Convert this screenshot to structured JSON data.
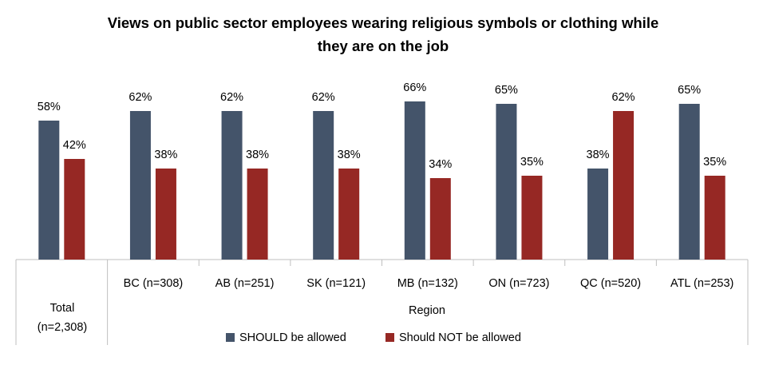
{
  "chart_data": {
    "type": "bar",
    "title_lines": [
      "Views on public sector employees wearing religious symbols or clothing while",
      "they are on the job"
    ],
    "total_label_lines": [
      "Total",
      "(n=2,308)"
    ],
    "group_label": "Region",
    "categories": [
      "Total",
      "BC (n=308)",
      "AB (n=251)",
      "SK (n=121)",
      "MB (n=132)",
      "ON (n=723)",
      "QC (n=520)",
      "ATL (n=253)"
    ],
    "series": [
      {
        "name": "SHOULD be allowed",
        "color": "#44546a",
        "values": [
          58,
          62,
          62,
          62,
          66,
          65,
          38,
          65
        ],
        "labels": [
          "58%",
          "62%",
          "62%",
          "62%",
          "66%",
          "65%",
          "38%",
          "65%"
        ]
      },
      {
        "name": "Should NOT be allowed",
        "color": "#962824",
        "values": [
          42,
          38,
          38,
          38,
          34,
          35,
          62,
          35
        ],
        "labels": [
          "42%",
          "38%",
          "38%",
          "38%",
          "34%",
          "35%",
          "62%",
          "35%"
        ]
      }
    ],
    "ylim": [
      0,
      100
    ],
    "legend_position": "bottom",
    "grid": false
  }
}
